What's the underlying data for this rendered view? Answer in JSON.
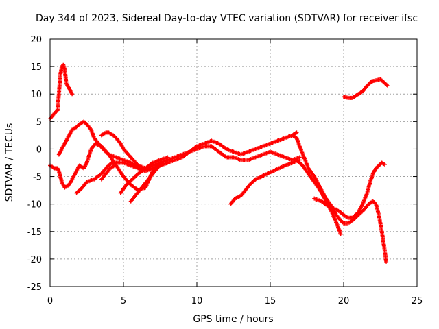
{
  "chart_data": {
    "type": "scatter",
    "title": "Day 344 of 2023, Sidereal Day-to-day VTEC variation (SDTVAR) for receiver ifsc",
    "xlabel": "GPS time / hours",
    "ylabel": "SDTVAR / TECUs",
    "xlim": [
      0,
      25
    ],
    "ylim": [
      -25,
      20
    ],
    "xticks": [
      0,
      5,
      10,
      15,
      20,
      25
    ],
    "yticks": [
      -25,
      -20,
      -15,
      -10,
      -5,
      0,
      5,
      10,
      15,
      20
    ],
    "grid": true,
    "marker": "+",
    "color": "#ff0000",
    "series": [
      {
        "x": [
          0.0,
          0.3,
          0.5,
          0.6,
          0.7,
          0.8,
          0.9,
          1.0,
          1.1,
          1.3,
          1.5
        ],
        "y": [
          5.5,
          6.5,
          7.0,
          10.0,
          13.5,
          15.0,
          15.3,
          14.5,
          12.0,
          11.0,
          10.0
        ]
      },
      {
        "x": [
          0.0,
          0.3,
          0.5,
          0.6,
          0.8,
          1.0,
          1.3,
          1.6,
          2.0,
          2.3,
          2.5,
          2.8,
          3.1,
          3.5,
          4.0,
          4.5,
          5.0,
          5.5,
          6.0,
          6.5,
          7.0,
          7.5
        ],
        "y": [
          -3.0,
          -3.5,
          -3.5,
          -4.0,
          -6.0,
          -7.0,
          -6.5,
          -5.0,
          -3.0,
          -3.5,
          -2.5,
          0.0,
          1.0,
          0.5,
          -1.0,
          -3.0,
          -5.0,
          -6.5,
          -7.5,
          -7.0,
          -4.0,
          -2.5
        ]
      },
      {
        "x": [
          0.6,
          0.8,
          1.0,
          1.2,
          1.5,
          1.8,
          2.0,
          2.3,
          2.5,
          2.8,
          3.0,
          3.3,
          3.6,
          4.0,
          4.5,
          5.0,
          5.5,
          6.0,
          6.5,
          7.0,
          7.5,
          8.0
        ],
        "y": [
          -1.0,
          0.0,
          1.0,
          2.0,
          3.5,
          4.0,
          4.5,
          5.0,
          4.5,
          3.5,
          2.0,
          1.0,
          0.0,
          -1.0,
          -1.5,
          -2.0,
          -2.5,
          -3.5,
          -4.0,
          -3.5,
          -3.0,
          -2.5
        ]
      },
      {
        "x": [
          1.8,
          2.2,
          2.5,
          3.0,
          3.5,
          3.8,
          4.2,
          4.5,
          5.0,
          5.5,
          6.0,
          6.5,
          7.0,
          7.5,
          8.0,
          8.5,
          9.0,
          9.5,
          10.0,
          10.5,
          11.0,
          11.5,
          12.0,
          12.5,
          13.0,
          13.5,
          14.0,
          14.5,
          15.0,
          15.5,
          16.0,
          16.5,
          17.0
        ],
        "y": [
          -8.0,
          -7.0,
          -6.0,
          -5.5,
          -4.5,
          -3.5,
          -2.5,
          -2.5,
          -2.5,
          -3.0,
          -3.5,
          -3.5,
          -3.0,
          -2.5,
          -2.0,
          -1.5,
          -1.0,
          -0.5,
          0.0,
          0.5,
          0.5,
          -0.5,
          -1.5,
          -1.5,
          -2.0,
          -2.0,
          -1.5,
          -1.0,
          -0.5,
          -1.0,
          -1.5,
          -2.0,
          -1.5
        ]
      },
      {
        "x": [
          3.5,
          3.8,
          4.0,
          4.3,
          4.5,
          4.8,
          5.0,
          5.5,
          6.0,
          6.5,
          7.0,
          7.5,
          8.0,
          8.5,
          9.0,
          9.5,
          10.0,
          10.5,
          11.0,
          11.5,
          12.0,
          12.5,
          13.0,
          13.5,
          14.0,
          14.5,
          15.0,
          15.5,
          16.0,
          16.5,
          16.8
        ],
        "y": [
          2.5,
          3.0,
          3.0,
          2.5,
          2.0,
          1.0,
          0.0,
          -1.5,
          -3.0,
          -3.5,
          -3.5,
          -3.0,
          -2.5,
          -2.0,
          -1.5,
          -0.5,
          0.5,
          1.0,
          1.5,
          1.0,
          0.0,
          -0.5,
          -1.0,
          -0.5,
          0.0,
          0.5,
          1.0,
          1.5,
          2.0,
          2.5,
          3.0
        ]
      },
      {
        "x": [
          3.5,
          3.8,
          4.1,
          4.4
        ],
        "y": [
          -5.5,
          -4.5,
          -3.5,
          -3.0
        ]
      },
      {
        "x": [
          4.8,
          5.2,
          5.6,
          6.0,
          6.5,
          7.0,
          7.5,
          8.0
        ],
        "y": [
          -8.0,
          -6.5,
          -5.5,
          -4.5,
          -3.5,
          -2.5,
          -2.0,
          -1.5
        ]
      },
      {
        "x": [
          5.5,
          5.8,
          6.1,
          6.4,
          6.7,
          7.0,
          7.3,
          7.6
        ],
        "y": [
          -9.5,
          -8.5,
          -7.5,
          -6.5,
          -5.5,
          -4.5,
          -3.5,
          -2.5
        ]
      },
      {
        "x": [
          12.3,
          12.6,
          13.0,
          13.3,
          13.6,
          14.0,
          14.4,
          14.8,
          15.2,
          15.6,
          16.0,
          16.5,
          17.0
        ],
        "y": [
          -10.0,
          -9.0,
          -8.5,
          -7.5,
          -6.5,
          -5.5,
          -5.0,
          -4.5,
          -4.0,
          -3.5,
          -3.0,
          -2.5,
          -2.0
        ]
      },
      {
        "x": [
          16.5,
          16.8,
          17.0,
          17.3,
          17.6,
          18.0,
          18.4,
          18.8,
          19.2,
          19.5,
          19.8,
          20.0,
          20.3,
          20.6,
          21.0,
          21.4,
          21.7,
          22.0,
          22.2,
          22.4,
          22.6,
          22.8,
          22.9
        ],
        "y": [
          2.5,
          2.0,
          0.5,
          -1.5,
          -3.5,
          -5.0,
          -7.0,
          -9.0,
          -10.5,
          -12.0,
          -13.0,
          -13.5,
          -13.5,
          -13.0,
          -12.0,
          -11.0,
          -10.0,
          -9.5,
          -10.0,
          -12.0,
          -15.0,
          -18.5,
          -20.5
        ]
      },
      {
        "x": [
          16.8,
          17.2,
          17.6,
          18.0,
          18.4,
          18.8,
          19.2,
          19.6,
          19.8
        ],
        "y": [
          -2.0,
          -3.0,
          -4.5,
          -6.0,
          -7.5,
          -9.5,
          -11.5,
          -14.0,
          -15.5
        ]
      },
      {
        "x": [
          18.0,
          18.5,
          19.0,
          19.5,
          19.8,
          20.0,
          20.3,
          20.6,
          21.0,
          21.3,
          21.6,
          21.8,
          22.0,
          22.2,
          22.4,
          22.6,
          22.8
        ],
        "y": [
          -9.0,
          -9.5,
          -10.5,
          -11.0,
          -11.5,
          -12.0,
          -12.5,
          -12.5,
          -11.5,
          -10.0,
          -8.0,
          -6.0,
          -4.5,
          -3.5,
          -3.0,
          -2.5,
          -2.8
        ]
      },
      {
        "x": [
          20.0,
          20.3,
          20.6,
          21.0,
          21.3,
          21.6,
          21.9,
          22.2,
          22.5,
          22.8,
          23.0
        ],
        "y": [
          9.5,
          9.3,
          9.3,
          10.0,
          10.5,
          11.5,
          12.3,
          12.5,
          12.7,
          12.0,
          11.5
        ]
      }
    ]
  }
}
